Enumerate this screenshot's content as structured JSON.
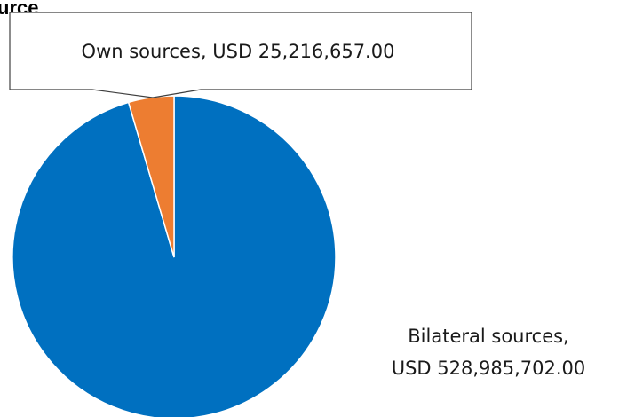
{
  "chart_data": {
    "type": "pie",
    "title": "urce",
    "colors": [
      "#0070C0",
      "#ED7D31"
    ],
    "slices": [
      {
        "name": "Bilateral sources",
        "value": 528985702.0,
        "label": "Bilateral sources,",
        "value_label": "USD  528,985,702.00",
        "color": "#0070C0"
      },
      {
        "name": "Own sources",
        "value": 25216657.0,
        "label": "Own sources, USD 25,216,657.00",
        "color": "#ED7D31"
      }
    ],
    "legend": "none",
    "data_labels": "callouts"
  }
}
